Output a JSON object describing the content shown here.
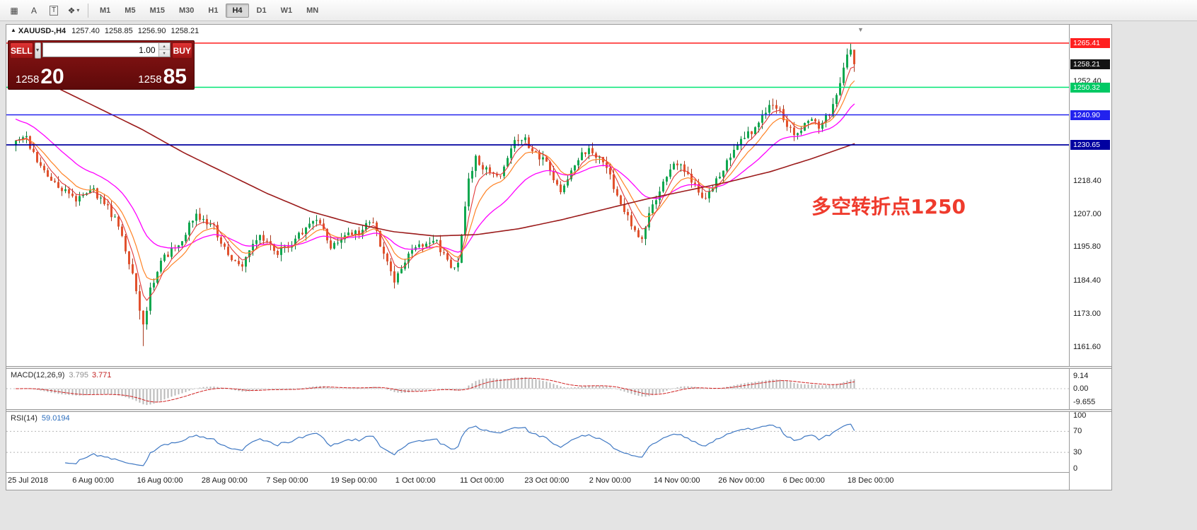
{
  "toolbar": {
    "icon_grid": "▦",
    "icon_a": "A",
    "icon_t": "T",
    "icon_shapes": "❖",
    "icon_caret": "▾",
    "timeframes": [
      "M1",
      "M5",
      "M15",
      "M30",
      "H1",
      "H4",
      "D1",
      "W1",
      "MN"
    ],
    "active_timeframe": "H4"
  },
  "title": {
    "arrow": "▲",
    "symbol": "XAUUSD-,H4",
    "open": "1257.40",
    "high": "1258.85",
    "low": "1256.90",
    "close": "1258.21"
  },
  "trade": {
    "sell_label": "SELL",
    "buy_label": "BUY",
    "volume": "1.00",
    "bid_main": "1258",
    "bid_pips": "20",
    "ask_main": "1258",
    "ask_pips": "85"
  },
  "icons": {
    "shift_marker": "▼",
    "spinner_up": "▲",
    "spinner_down": "▼",
    "dropdown_caret": "▼"
  },
  "annotation": {
    "text": "多空转折点1250",
    "color": "#ef3b2d"
  },
  "indicators": {
    "macd": {
      "label": "MACD(12,26,9)",
      "value_main": "3.795",
      "value_signal": "3.771",
      "axis": [
        {
          "text": "9.14",
          "value": 9.14
        },
        {
          "text": "0.00",
          "value": 0
        },
        {
          "text": "-9.655",
          "value": -9.655
        }
      ]
    },
    "rsi": {
      "label": "RSI(14)",
      "value": "59.0194",
      "axis": [
        {
          "text": "100",
          "value": 100
        },
        {
          "text": "70",
          "value": 70
        },
        {
          "text": "30",
          "value": 30
        },
        {
          "text": "0",
          "value": 0
        }
      ],
      "levels": [
        70,
        30
      ]
    }
  },
  "price_axis": {
    "tags": [
      {
        "text": "1265.41",
        "price": 1265.41,
        "bg": "#ff1f1f"
      },
      {
        "text": "1258.21",
        "price": 1258.21,
        "bg": "#141414"
      },
      {
        "text": "1250.32",
        "price": 1250.32,
        "bg": "#00c964"
      },
      {
        "text": "1240.90",
        "price": 1240.9,
        "bg": "#2222ee"
      },
      {
        "text": "1230.65",
        "price": 1230.65,
        "bg": "#0000a0"
      }
    ],
    "ticks": [
      {
        "text": "1252.40",
        "price": 1252.4
      },
      {
        "text": "1218.40",
        "price": 1218.4
      },
      {
        "text": "1207.00",
        "price": 1207.0
      },
      {
        "text": "1195.80",
        "price": 1195.8
      },
      {
        "text": "1184.40",
        "price": 1184.4
      },
      {
        "text": "1173.00",
        "price": 1173.0
      },
      {
        "text": "1161.60",
        "price": 1161.6
      }
    ]
  },
  "time_axis": {
    "labels": [
      "25 Jul 2018",
      "6 Aug 00:00",
      "16 Aug 00:00",
      "28 Aug 00:00",
      "7 Sep 00:00",
      "19 Sep 00:00",
      "1 Oct 00:00",
      "11 Oct 00:00",
      "23 Oct 00:00",
      "2 Nov 00:00",
      "14 Nov 00:00",
      "26 Nov 00:00",
      "6 Dec 00:00",
      "18 Dec 00:00"
    ]
  },
  "chart_data": {
    "type": "candlestick",
    "symbol": "XAUUSD",
    "timeframe": "H4",
    "candle_count": 238,
    "price_range": [
      1161.6,
      1265.41
    ],
    "hlines": [
      {
        "price": 1265.41,
        "color": "#ff1f1f",
        "width": 1.4
      },
      {
        "price": 1250.32,
        "color": "#00e673",
        "width": 1.4
      },
      {
        "price": 1240.9,
        "color": "#2222ee",
        "width": 1.4
      },
      {
        "price": 1230.65,
        "color": "#0000a0",
        "width": 1.8
      }
    ],
    "close_path": [
      [
        0,
        1231
      ],
      [
        0.01,
        1234
      ],
      [
        0.03,
        1222
      ],
      [
        0.05,
        1217
      ],
      [
        0.07,
        1212
      ],
      [
        0.09,
        1216
      ],
      [
        0.11,
        1209
      ],
      [
        0.125,
        1202
      ],
      [
        0.14,
        1185
      ],
      [
        0.152,
        1169
      ],
      [
        0.162,
        1183
      ],
      [
        0.175,
        1192
      ],
      [
        0.195,
        1197
      ],
      [
        0.215,
        1207
      ],
      [
        0.235,
        1203
      ],
      [
        0.255,
        1192
      ],
      [
        0.27,
        1190
      ],
      [
        0.29,
        1200
      ],
      [
        0.31,
        1194
      ],
      [
        0.33,
        1197
      ],
      [
        0.345,
        1202
      ],
      [
        0.36,
        1205
      ],
      [
        0.375,
        1196
      ],
      [
        0.39,
        1199
      ],
      [
        0.41,
        1201
      ],
      [
        0.425,
        1205
      ],
      [
        0.44,
        1192
      ],
      [
        0.452,
        1184
      ],
      [
        0.465,
        1192
      ],
      [
        0.48,
        1196
      ],
      [
        0.5,
        1199
      ],
      [
        0.515,
        1190
      ],
      [
        0.525,
        1187
      ],
      [
        0.533,
        1202
      ],
      [
        0.54,
        1218
      ],
      [
        0.548,
        1226
      ],
      [
        0.56,
        1222
      ],
      [
        0.575,
        1219
      ],
      [
        0.59,
        1230
      ],
      [
        0.605,
        1233
      ],
      [
        0.62,
        1228
      ],
      [
        0.635,
        1224
      ],
      [
        0.65,
        1214
      ],
      [
        0.662,
        1221
      ],
      [
        0.675,
        1229
      ],
      [
        0.69,
        1228
      ],
      [
        0.705,
        1222
      ],
      [
        0.72,
        1212
      ],
      [
        0.735,
        1203
      ],
      [
        0.745,
        1198
      ],
      [
        0.76,
        1210
      ],
      [
        0.775,
        1220
      ],
      [
        0.79,
        1225
      ],
      [
        0.805,
        1218
      ],
      [
        0.82,
        1212
      ],
      [
        0.835,
        1218
      ],
      [
        0.85,
        1226
      ],
      [
        0.865,
        1232
      ],
      [
        0.88,
        1236
      ],
      [
        0.895,
        1242
      ],
      [
        0.905,
        1245
      ],
      [
        0.915,
        1240
      ],
      [
        0.93,
        1234
      ],
      [
        0.945,
        1239
      ],
      [
        0.958,
        1237
      ],
      [
        0.97,
        1241
      ],
      [
        0.98,
        1248
      ],
      [
        0.99,
        1260
      ],
      [
        0.995,
        1264
      ],
      [
        1,
        1258.2
      ]
    ],
    "ma_slow_path": [
      [
        0,
        1258
      ],
      [
        0.05,
        1250
      ],
      [
        0.1,
        1243
      ],
      [
        0.15,
        1236
      ],
      [
        0.2,
        1228
      ],
      [
        0.25,
        1221
      ],
      [
        0.3,
        1214
      ],
      [
        0.35,
        1208
      ],
      [
        0.4,
        1204
      ],
      [
        0.45,
        1201
      ],
      [
        0.5,
        1199.5
      ],
      [
        0.55,
        1200
      ],
      [
        0.6,
        1202
      ],
      [
        0.65,
        1205
      ],
      [
        0.7,
        1208.5
      ],
      [
        0.75,
        1212
      ],
      [
        0.8,
        1215
      ],
      [
        0.85,
        1218
      ],
      [
        0.9,
        1221.5
      ],
      [
        0.95,
        1226
      ],
      [
        1,
        1231
      ]
    ],
    "colors": {
      "up": "#0fa84f",
      "up_stroke": "#0a7538",
      "down": "#e2512d",
      "down_stroke": "#a83a1f",
      "ema_fast": "#e33b3b",
      "ema_mid": "#ff8326",
      "ema_magenta": "#ff00ff",
      "ma_slow": "#9b1b1b",
      "macd_hist": "#b9b9b9",
      "macd_signal": "#d02020",
      "rsi": "#3f78c3"
    }
  }
}
